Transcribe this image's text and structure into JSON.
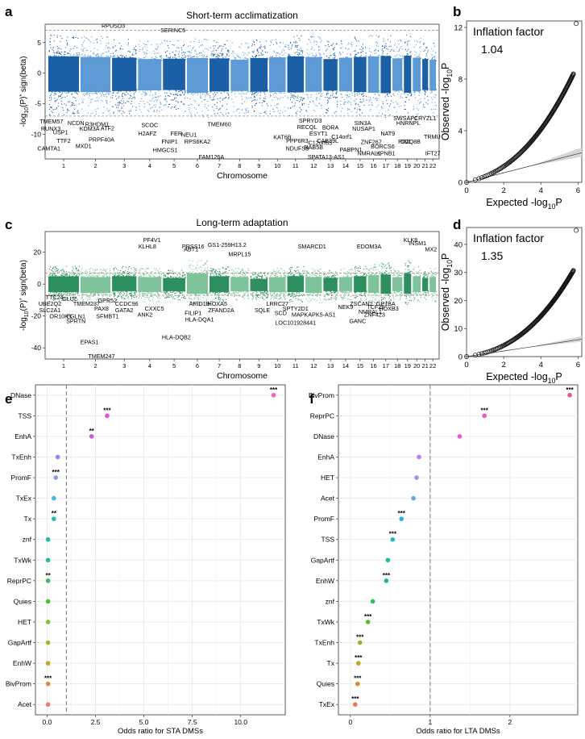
{
  "panels": {
    "a": "a",
    "b": "b",
    "c": "c",
    "d": "d",
    "e": "e",
    "f": "f"
  },
  "chart_data": [
    {
      "id": "a",
      "type": "scatter",
      "subtype": "manhattan",
      "title": "Short-term acclimatization",
      "xlabel": "Chromosome",
      "ylabel_parts": [
        "-log",
        "10",
        "(P)",
        "*",
        " sign(beta)"
      ],
      "ylim": [
        -14,
        8
      ],
      "yticks": [
        -10,
        -5,
        0,
        5
      ],
      "threshold": [
        7,
        -7
      ],
      "chromosomes": [
        "1",
        "2",
        "3",
        "4",
        "5",
        "6",
        "7",
        "8",
        "9",
        "10",
        "11",
        "12",
        "13",
        "14",
        "15",
        "16",
        "17",
        "18",
        "19",
        "20",
        "21",
        "22"
      ],
      "chrom_sizes": [
        249,
        243,
        198,
        190,
        181,
        171,
        159,
        146,
        141,
        134,
        135,
        133,
        114,
        107,
        102,
        90,
        83,
        80,
        59,
        64,
        47,
        51
      ],
      "envelope_pos": [
        5.0,
        4.8,
        4.6,
        4.2,
        4.3,
        4.5,
        4.4,
        4.0,
        4.5,
        4.7,
        5.0,
        4.8,
        4.2,
        4.6,
        4.8,
        5.0,
        5.1,
        4.4,
        5.2,
        4.6,
        4.2,
        4.0
      ],
      "envelope_neg": [
        -5.5,
        -5.6,
        -5.3,
        -5.1,
        -5.0,
        -5.8,
        -5.4,
        -5.3,
        -5.5,
        -5.6,
        -5.7,
        -5.5,
        -5.2,
        -5.4,
        -5.6,
        -5.8,
        -5.9,
        -5.2,
        -5.8,
        -5.4,
        -5.0,
        -5.2
      ],
      "colors": [
        "#1b5fa6",
        "#5d9ad6"
      ],
      "annotations": [
        {
          "label": "RPUSD3",
          "chr": 3,
          "pos": 0.05,
          "y": 7.8
        },
        {
          "label": "SERINC5",
          "chr": 5,
          "pos": 0.45,
          "y": 7.1
        },
        {
          "label": "TMEM57",
          "chr": 1,
          "pos": 0.1,
          "y": -7.8
        },
        {
          "label": "RUNX3",
          "chr": 1,
          "pos": 0.08,
          "y": -9.0
        },
        {
          "label": "KDM3A",
          "chr": 2,
          "pos": 0.3,
          "y": -9.0
        },
        {
          "label": "USP1",
          "chr": 1,
          "pos": 0.4,
          "y": -9.6
        },
        {
          "label": "CAMTA1",
          "chr": 1,
          "pos": 0.02,
          "y": -12.2
        },
        {
          "label": "TTF2",
          "chr": 1,
          "pos": 0.5,
          "y": -11.0
        },
        {
          "label": "MXD1",
          "chr": 2,
          "pos": 0.1,
          "y": -11.8
        },
        {
          "label": "R3HDM1",
          "chr": 2,
          "pos": 0.55,
          "y": -8.3
        },
        {
          "label": "ATF2",
          "chr": 2,
          "pos": 0.9,
          "y": -8.9
        },
        {
          "label": "PRPF40A",
          "chr": 2,
          "pos": 0.7,
          "y": -10.8
        },
        {
          "label": "SCOC",
          "chr": 4,
          "pos": 0.5,
          "y": -8.4
        },
        {
          "label": "H2AFZ",
          "chr": 4,
          "pos": 0.4,
          "y": -9.8
        },
        {
          "label": "FNIP1",
          "chr": 5,
          "pos": 0.3,
          "y": -11.1
        },
        {
          "label": "FER",
          "chr": 5,
          "pos": 0.6,
          "y": -9.8
        },
        {
          "label": "NEU1",
          "chr": 6,
          "pos": 0.1,
          "y": -10.0
        },
        {
          "label": "RPS6KA2",
          "chr": 6,
          "pos": 0.5,
          "y": -11.1
        },
        {
          "label": "HMGCS1",
          "chr": 5,
          "pos": 0.1,
          "y": -12.5
        },
        {
          "label": "TMEM60",
          "chr": 7,
          "pos": 0.5,
          "y": -8.3
        },
        {
          "label": "FAM126A",
          "chr": 7,
          "pos": 0.1,
          "y": -13.6
        },
        {
          "label": "SPRYD3",
          "chr": 12,
          "pos": 0.3,
          "y": -7.7
        },
        {
          "label": "RECQL",
          "chr": 12,
          "pos": 0.1,
          "y": -8.7
        },
        {
          "label": "BORA",
          "chr": 13,
          "pos": 0.5,
          "y": -8.8
        },
        {
          "label": "NCDN",
          "chr": 1,
          "pos": 0.9,
          "y": -8.1,
          "x_override": "chr14"
        },
        {
          "label": "SIN3A",
          "chr": 15,
          "pos": 0.7,
          "y": -8.1
        },
        {
          "label": "SWSAP1",
          "chr": 19,
          "pos": 0.2,
          "y": -7.3
        },
        {
          "label": "CRYZL1",
          "chr": 21,
          "pos": 0.5,
          "y": -7.3
        },
        {
          "label": "HNRNPL",
          "chr": 19,
          "pos": 0.6,
          "y": -8.1
        },
        {
          "label": "NUSAP1",
          "chr": 15,
          "pos": 0.8,
          "y": -9.0
        },
        {
          "label": "ESYT1",
          "chr": 12,
          "pos": 0.8,
          "y": -9.8
        },
        {
          "label": "NAT9",
          "chr": 17,
          "pos": 0.7,
          "y": -9.8
        },
        {
          "label": "KAT6B",
          "chr": 10,
          "pos": 0.8,
          "y": -10.4
        },
        {
          "label": "PPP6R3",
          "chr": 11,
          "pos": 0.6,
          "y": -11.0
        },
        {
          "label": "C14orf1",
          "chr": 14,
          "pos": 0.2,
          "y": -10.3
        },
        {
          "label": "CAB39L",
          "chr": 13,
          "pos": 0.3,
          "y": -11.0
        },
        {
          "label": "C12orf65",
          "chr": 12,
          "pos": 0.9,
          "y": -11.3
        },
        {
          "label": "TRMU",
          "chr": 22,
          "pos": 0.4,
          "y": -10.3
        },
        {
          "label": "PIN1",
          "chr": 19,
          "pos": 0.1,
          "y": -11.1
        },
        {
          "label": "COQ8B",
          "chr": 19,
          "pos": 0.9,
          "y": -11.1
        },
        {
          "label": "ZNF267",
          "chr": 16,
          "pos": 0.3,
          "y": -11.2
        },
        {
          "label": "NDUFS8",
          "chr": 11,
          "pos": 0.6,
          "y": -12.2
        },
        {
          "label": "RAB5B",
          "chr": 12,
          "pos": 0.5,
          "y": -12.0
        },
        {
          "label": "BORCS6",
          "chr": 17,
          "pos": 0.2,
          "y": -11.9
        },
        {
          "label": "PABPN1",
          "chr": 14,
          "pos": 0.9,
          "y": -12.4
        },
        {
          "label": "KPNB1",
          "chr": 17,
          "pos": 0.5,
          "y": -13.0
        },
        {
          "label": "IFT27",
          "chr": 22,
          "pos": 0.5,
          "y": -13.0
        },
        {
          "label": "NMRAL1",
          "chr": 16,
          "pos": 0.1,
          "y": -13.0
        },
        {
          "label": "SPATA13-AS1",
          "chr": 13,
          "pos": 0.2,
          "y": -13.6
        }
      ]
    },
    {
      "id": "b",
      "type": "scatter",
      "subtype": "qq",
      "xlabel_parts": [
        "Expected -log",
        "10",
        "P"
      ],
      "ylabel_parts": [
        "Observed -log",
        "10",
        "P"
      ],
      "xlim": [
        0,
        6.2
      ],
      "ylim": [
        0,
        12.5
      ],
      "xticks": [
        0,
        2,
        4,
        6
      ],
      "yticks": [
        0,
        4,
        8,
        12
      ],
      "inflation_label": "Inflation factor",
      "inflation_value": "1.04",
      "curve_end": [
        5.9,
        12.3
      ],
      "band_slope": 0.37
    },
    {
      "id": "c",
      "type": "scatter",
      "subtype": "manhattan",
      "title": "Long-term adaptation",
      "xlabel": "Chromosome",
      "ylabel_parts": [
        "-log",
        "10",
        "(P)",
        "*",
        " sign(beta)"
      ],
      "ylim": [
        -47,
        33
      ],
      "yticks": [
        -40,
        -20,
        0,
        20
      ],
      "threshold": [
        7,
        -7
      ],
      "chromosomes": [
        "1",
        "2",
        "3",
        "4",
        "5",
        "6",
        "7",
        "8",
        "9",
        "10",
        "11",
        "12",
        "13",
        "14",
        "15",
        "16",
        "17",
        "18",
        "19",
        "20",
        "21",
        "22"
      ],
      "chrom_sizes": [
        249,
        243,
        198,
        190,
        181,
        171,
        159,
        146,
        141,
        134,
        135,
        133,
        114,
        107,
        102,
        90,
        83,
        80,
        59,
        64,
        47,
        51
      ],
      "envelope_pos": [
        9,
        8,
        9,
        8,
        7,
        12,
        9,
        8,
        6,
        8,
        9,
        8,
        7,
        8,
        9,
        10,
        11,
        8,
        12,
        9,
        7,
        8
      ],
      "envelope_neg": [
        -9,
        -10,
        -8,
        -9,
        -8,
        -11,
        -9,
        -8,
        -8,
        -9,
        -9,
        -10,
        -8,
        -8,
        -9,
        -10,
        -11,
        -8,
        -11,
        -9,
        -8,
        -9
      ],
      "colors": [
        "#2e8f5e",
        "#7fc39a"
      ],
      "annotations": [
        {
          "label": "PF4V1",
          "chr": 4,
          "pos": 0.6,
          "y": 28
        },
        {
          "label": "KLHL8",
          "chr": 4,
          "pos": 0.4,
          "y": 24
        },
        {
          "label": "PRSS16",
          "chr": 6,
          "pos": 0.3,
          "y": 24
        },
        {
          "label": "ABT1",
          "chr": 6,
          "pos": 0.2,
          "y": 22
        },
        {
          "label": "GS1-259H13.2",
          "chr": 7,
          "pos": 0.9,
          "y": 25
        },
        {
          "label": "MRPL15",
          "chr": 8,
          "pos": 0.5,
          "y": 19
        },
        {
          "label": "SMARCD1",
          "chr": 12,
          "pos": 0.4,
          "y": 24
        },
        {
          "label": "EDOM3A",
          "chr": 16,
          "pos": 0.1,
          "y": 24
        },
        {
          "label": "KLK8",
          "chr": 19,
          "pos": 0.9,
          "y": 28
        },
        {
          "label": "INSM1",
          "chr": 20,
          "pos": 0.6,
          "y": 26
        },
        {
          "label": "MX2",
          "chr": 22,
          "pos": 0.2,
          "y": 22
        },
        {
          "label": "TTC24",
          "chr": 1,
          "pos": 0.2,
          "y": -8
        },
        {
          "label": "GLUL",
          "chr": 1,
          "pos": 0.7,
          "y": -9
        },
        {
          "label": "UBE2Q2",
          "chr": 1,
          "pos": 0.05,
          "y": -12
        },
        {
          "label": "TMEM237",
          "chr": 2,
          "pos": 0.2,
          "y": -12
        },
        {
          "label": "GPR52",
          "chr": 2,
          "pos": 0.9,
          "y": -10
        },
        {
          "label": "SLC2A1",
          "chr": 1,
          "pos": 0.05,
          "y": -16
        },
        {
          "label": "PAX8",
          "chr": 2,
          "pos": 0.7,
          "y": -15
        },
        {
          "label": "CCDC96",
          "chr": 3,
          "pos": 0.6,
          "y": -12
        },
        {
          "label": "OR10K1",
          "chr": 1,
          "pos": 0.4,
          "y": -20
        },
        {
          "label": "EGLN1",
          "chr": 1,
          "pos": 0.9,
          "y": -20
        },
        {
          "label": "SFMBT1",
          "chr": 2,
          "pos": 0.9,
          "y": -20
        },
        {
          "label": "GATA2",
          "chr": 3,
          "pos": 0.5,
          "y": -16
        },
        {
          "label": "CXXC5",
          "chr": 4,
          "pos": 0.7,
          "y": -15
        },
        {
          "label": "ANK2",
          "chr": 4,
          "pos": 0.3,
          "y": -19
        },
        {
          "label": "SPRTN",
          "chr": 1,
          "pos": 0.9,
          "y": -23
        },
        {
          "label": "ARID1B",
          "chr": 6,
          "pos": 0.6,
          "y": -12
        },
        {
          "label": "HOXA5",
          "chr": 7,
          "pos": 0.4,
          "y": -12
        },
        {
          "label": "FILIP1",
          "chr": 6,
          "pos": 0.3,
          "y": -18
        },
        {
          "label": "ZFAND2A",
          "chr": 7,
          "pos": 0.6,
          "y": -16
        },
        {
          "label": "HLA-DQA1",
          "chr": 6,
          "pos": 0.6,
          "y": -22
        },
        {
          "label": "HLA-DQB2",
          "chr": 5,
          "pos": 0.6,
          "y": -33
        },
        {
          "label": "EPAS1",
          "chr": 2,
          "pos": 0.3,
          "y": -36
        },
        {
          "label": "TMEM247",
          "chr": 2,
          "pos": 0.7,
          "y": -45
        },
        {
          "label": "LRRC27",
          "chr": 10,
          "pos": 0.5,
          "y": -12
        },
        {
          "label": "SQLE",
          "chr": 9,
          "pos": 0.7,
          "y": -16
        },
        {
          "label": "SCD",
          "chr": 10,
          "pos": 0.7,
          "y": -18
        },
        {
          "label": "SPTY2D1",
          "chr": 11,
          "pos": 0.5,
          "y": -15
        },
        {
          "label": "MAPKAPK5-AS1",
          "chr": 12,
          "pos": 0.5,
          "y": -19
        },
        {
          "label": "LOC101928441",
          "chr": 11,
          "pos": 0.5,
          "y": -24
        },
        {
          "label": "NEK9",
          "chr": 14,
          "pos": 0.5,
          "y": -14
        },
        {
          "label": "ZSCAN2",
          "chr": 15,
          "pos": 0.6,
          "y": -12
        },
        {
          "label": "GP1BA",
          "chr": 17,
          "pos": 0.5,
          "y": -12
        },
        {
          "label": "NMRAL1",
          "chr": 16,
          "pos": 0.2,
          "y": -17
        },
        {
          "label": "TCF25",
          "chr": 16,
          "pos": 0.7,
          "y": -14
        },
        {
          "label": "HOXB3",
          "chr": 17,
          "pos": 0.8,
          "y": -15
        },
        {
          "label": "ZNF423",
          "chr": 16,
          "pos": 0.6,
          "y": -19
        },
        {
          "label": "GANC",
          "chr": 15,
          "pos": 0.3,
          "y": -23
        }
      ]
    },
    {
      "id": "d",
      "type": "scatter",
      "subtype": "qq",
      "xlabel_parts": [
        "Expected -log",
        "10",
        "P"
      ],
      "ylabel_parts": [
        "Observed -log",
        "10",
        "P"
      ],
      "xlim": [
        0,
        6.2
      ],
      "ylim": [
        0,
        46
      ],
      "xticks": [
        0,
        2,
        4,
        6
      ],
      "yticks": [
        0,
        10,
        20,
        30,
        40
      ],
      "inflation_label": "Inflation factor",
      "inflation_value": "1.35",
      "curve_end": [
        5.9,
        45
      ],
      "band_slope": 1.0
    },
    {
      "id": "e",
      "type": "scatter",
      "subtype": "dotplot",
      "xlabel": "Odds ratio for STA DMSs",
      "xlim": [
        -0.6,
        12.3
      ],
      "xticks": [
        0.0,
        2.5,
        5.0,
        7.5,
        10.0
      ],
      "xticklabels": [
        "0.0",
        "2.5",
        "5.0",
        "7.5",
        "10.0"
      ],
      "refline": 1,
      "categories": [
        "DNase",
        "TSS",
        "EnhA",
        "TxEnh",
        "PromF",
        "TxEx",
        "Tx",
        "znf",
        "TxWk",
        "ReprPC",
        "Quies",
        "HET",
        "GapArtf",
        "EnhW",
        "BivProm",
        "Acet"
      ],
      "values": [
        11.7,
        3.1,
        2.3,
        0.55,
        0.45,
        0.35,
        0.35,
        0.05,
        0.05,
        0.05,
        0.05,
        0.05,
        0.05,
        0.05,
        0.05,
        0.05
      ],
      "signif": [
        "***",
        "***",
        "**",
        "",
        "***",
        "",
        "**",
        "",
        "",
        "**",
        "",
        "",
        "",
        "",
        "***",
        ""
      ],
      "colors": [
        "#f062c4",
        "#e050d8",
        "#cf55e0",
        "#a77ef2",
        "#7f9cf5",
        "#4faee8",
        "#22b8c2",
        "#20bca0",
        "#22c088",
        "#2abf62",
        "#4cbf3a",
        "#86bc2a",
        "#aab628",
        "#c6a522",
        "#d98f2e",
        "#ee7b70"
      ]
    },
    {
      "id": "f",
      "type": "scatter",
      "subtype": "dotplot",
      "xlabel": "Odds ratio for LTA DMSs",
      "xlim": [
        -0.15,
        2.85
      ],
      "xticks": [
        0,
        1,
        2
      ],
      "xticklabels": [
        "0",
        "1",
        "2"
      ],
      "refline": 1,
      "categories": [
        "BivProm",
        "ReprPC",
        "DNase",
        "EnhA",
        "HET",
        "Acet",
        "PromF",
        "TSS",
        "GapArtf",
        "EnhW",
        "znf",
        "TxWk",
        "TxEnh",
        "Tx",
        "Quies",
        "TxEx"
      ],
      "values": [
        2.75,
        1.68,
        1.37,
        0.86,
        0.83,
        0.79,
        0.64,
        0.53,
        0.47,
        0.45,
        0.28,
        0.22,
        0.12,
        0.1,
        0.09,
        0.06
      ],
      "signif": [
        "***",
        "***",
        "",
        "",
        "",
        "",
        "***",
        "***",
        "",
        "***",
        "",
        "***",
        "***",
        "***",
        "***",
        "***"
      ],
      "colors": [
        "#f0528c",
        "#ee58b6",
        "#e05ad8",
        "#c877ee",
        "#a48ef2",
        "#5ea9ee",
        "#2ab5d8",
        "#22bbb6",
        "#20bd98",
        "#22bf78",
        "#2ebf4e",
        "#5cbd2e",
        "#92b62a",
        "#b8a826",
        "#d09228",
        "#e67c52"
      ]
    }
  ]
}
